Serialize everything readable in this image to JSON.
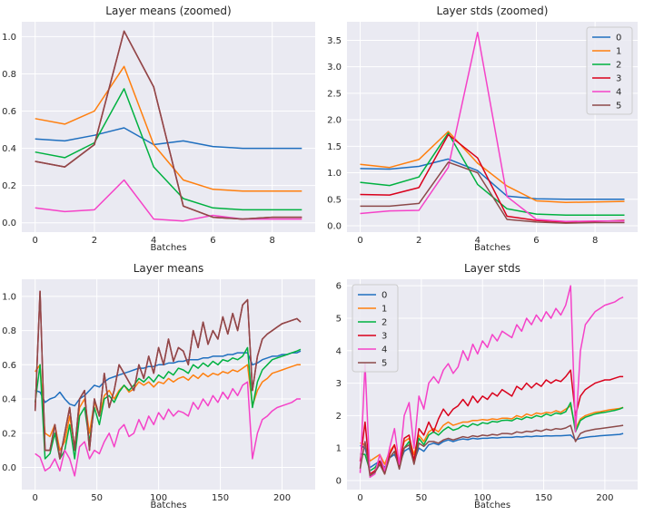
{
  "colors": {
    "background": "#eaeaf2",
    "grid": "#ffffff",
    "series": [
      "#1f6fbf",
      "#ff7f0e",
      "#00b140",
      "#d9001b",
      "#f542c8",
      "#8c4a4a"
    ]
  },
  "chart_data": [
    {
      "type": "line",
      "title": "Layer means (zoomed)",
      "xlabel": "Batches",
      "xlim": [
        -0.45,
        9.45
      ],
      "ylim": [
        -0.05,
        1.08
      ],
      "xticks": [
        "0",
        "2",
        "4",
        "6",
        "8"
      ],
      "yticks": [
        "0.0",
        "0.2",
        "0.4",
        "0.6",
        "0.8",
        "1.0"
      ],
      "legend": false,
      "x": [
        0,
        1,
        2,
        3,
        4,
        5,
        6,
        7,
        8,
        9
      ],
      "series": [
        {
          "name": "0",
          "values": [
            0.45,
            0.44,
            0.47,
            0.51,
            0.42,
            0.44,
            0.41,
            0.4,
            0.4,
            0.4
          ]
        },
        {
          "name": "1",
          "values": [
            0.56,
            0.53,
            0.6,
            0.84,
            0.42,
            0.23,
            0.18,
            0.17,
            0.17,
            0.17
          ]
        },
        {
          "name": "2",
          "values": [
            0.38,
            0.35,
            0.43,
            0.72,
            0.3,
            0.13,
            0.08,
            0.07,
            0.07,
            0.07
          ]
        },
        {
          "name": "3",
          "values": [
            0.33,
            0.3,
            0.42,
            1.03,
            0.73,
            0.09,
            0.03,
            0.02,
            0.03,
            0.03
          ]
        },
        {
          "name": "4",
          "values": [
            0.08,
            0.06,
            0.07,
            0.23,
            0.02,
            0.01,
            0.04,
            0.02,
            0.02,
            0.02
          ]
        },
        {
          "name": "5",
          "values": [
            0.33,
            0.3,
            0.42,
            1.03,
            0.73,
            0.09,
            0.03,
            0.02,
            0.03,
            0.03
          ]
        }
      ]
    },
    {
      "type": "line",
      "title": "Layer stds (zoomed)",
      "xlabel": "Batches",
      "xlim": [
        -0.45,
        9.45
      ],
      "ylim": [
        -0.12,
        3.85
      ],
      "xticks": [
        "0",
        "2",
        "4",
        "6",
        "8"
      ],
      "yticks": [
        "0.0",
        "0.5",
        "1.0",
        "1.5",
        "2.0",
        "2.5",
        "3.0",
        "3.5"
      ],
      "legend": true,
      "legend_position": "top-right",
      "x": [
        0,
        1,
        2,
        3,
        4,
        5,
        6,
        7,
        8,
        9
      ],
      "series": [
        {
          "name": "0",
          "values": [
            1.08,
            1.07,
            1.12,
            1.26,
            1.04,
            0.56,
            0.51,
            0.5,
            0.5,
            0.5
          ]
        },
        {
          "name": "1",
          "values": [
            1.16,
            1.1,
            1.25,
            1.78,
            1.18,
            0.75,
            0.47,
            0.44,
            0.45,
            0.46
          ]
        },
        {
          "name": "2",
          "values": [
            0.82,
            0.76,
            0.92,
            1.75,
            0.78,
            0.32,
            0.22,
            0.2,
            0.2,
            0.2
          ]
        },
        {
          "name": "3",
          "values": [
            0.59,
            0.58,
            0.72,
            1.72,
            1.28,
            0.18,
            0.1,
            0.07,
            0.08,
            0.1
          ]
        },
        {
          "name": "4",
          "values": [
            0.23,
            0.28,
            0.29,
            1.1,
            3.65,
            0.55,
            0.12,
            0.08,
            0.09,
            0.09
          ]
        },
        {
          "name": "5",
          "values": [
            0.37,
            0.37,
            0.42,
            1.2,
            1.0,
            0.12,
            0.07,
            0.05,
            0.06,
            0.06
          ]
        }
      ]
    },
    {
      "type": "line",
      "title": "Layer means",
      "xlabel": "Batches",
      "xlim": [
        -10.8,
        226.8
      ],
      "ylim": [
        -0.13,
        1.1
      ],
      "xticks": [
        "0",
        "50",
        "100",
        "150",
        "200"
      ],
      "yticks": [
        "0.0",
        "0.2",
        "0.4",
        "0.6",
        "0.8",
        "1.0"
      ],
      "legend": false,
      "x_note": "216 batches; values sampled every 4 batches",
      "x": [
        0,
        4,
        8,
        12,
        16,
        20,
        24,
        28,
        32,
        36,
        40,
        44,
        48,
        52,
        56,
        60,
        64,
        68,
        72,
        76,
        80,
        84,
        88,
        92,
        96,
        100,
        104,
        108,
        112,
        116,
        120,
        124,
        128,
        132,
        136,
        140,
        144,
        148,
        152,
        156,
        160,
        164,
        168,
        172,
        176,
        180,
        184,
        188,
        192,
        196,
        200,
        204,
        208,
        212,
        215
      ],
      "series": [
        {
          "name": "0",
          "values": [
            0.45,
            0.44,
            0.38,
            0.4,
            0.41,
            0.44,
            0.4,
            0.37,
            0.36,
            0.4,
            0.42,
            0.45,
            0.48,
            0.47,
            0.5,
            0.52,
            0.53,
            0.54,
            0.55,
            0.56,
            0.57,
            0.58,
            0.58,
            0.59,
            0.59,
            0.6,
            0.6,
            0.61,
            0.61,
            0.62,
            0.62,
            0.63,
            0.63,
            0.63,
            0.64,
            0.64,
            0.65,
            0.65,
            0.65,
            0.66,
            0.66,
            0.67,
            0.67,
            0.67,
            0.6,
            0.61,
            0.63,
            0.64,
            0.65,
            0.65,
            0.66,
            0.66,
            0.67,
            0.67,
            0.68
          ]
        },
        {
          "name": "1",
          "values": [
            0.56,
            0.6,
            0.2,
            0.18,
            0.25,
            0.1,
            0.15,
            0.3,
            0.12,
            0.35,
            0.4,
            0.2,
            0.38,
            0.3,
            0.42,
            0.45,
            0.4,
            0.45,
            0.48,
            0.44,
            0.46,
            0.5,
            0.48,
            0.5,
            0.47,
            0.5,
            0.49,
            0.52,
            0.5,
            0.52,
            0.53,
            0.51,
            0.54,
            0.52,
            0.55,
            0.53,
            0.55,
            0.54,
            0.56,
            0.55,
            0.57,
            0.56,
            0.58,
            0.6,
            0.36,
            0.45,
            0.5,
            0.52,
            0.55,
            0.56,
            0.57,
            0.58,
            0.59,
            0.6,
            0.6
          ]
        },
        {
          "name": "2",
          "values": [
            0.38,
            0.6,
            0.05,
            0.08,
            0.2,
            0.05,
            0.1,
            0.25,
            0.05,
            0.3,
            0.35,
            0.15,
            0.35,
            0.25,
            0.4,
            0.42,
            0.38,
            0.44,
            0.48,
            0.45,
            0.48,
            0.52,
            0.5,
            0.53,
            0.5,
            0.54,
            0.52,
            0.56,
            0.54,
            0.58,
            0.57,
            0.55,
            0.6,
            0.58,
            0.61,
            0.59,
            0.62,
            0.6,
            0.63,
            0.62,
            0.64,
            0.63,
            0.65,
            0.7,
            0.35,
            0.5,
            0.57,
            0.6,
            0.63,
            0.64,
            0.65,
            0.66,
            0.67,
            0.68,
            0.69
          ]
        },
        {
          "name": "3",
          "values": [
            0.33,
            1.03,
            0.1,
            0.1,
            0.25,
            0.05,
            0.2,
            0.35,
            0.1,
            0.4,
            0.45,
            0.1,
            0.4,
            0.3,
            0.55,
            0.35,
            0.45,
            0.6,
            0.55,
            0.5,
            0.45,
            0.6,
            0.52,
            0.65,
            0.55,
            0.7,
            0.6,
            0.75,
            0.62,
            0.7,
            0.68,
            0.6,
            0.8,
            0.7,
            0.85,
            0.72,
            0.8,
            0.75,
            0.88,
            0.78,
            0.9,
            0.8,
            0.95,
            0.98,
            0.45,
            0.65,
            0.75,
            0.78,
            0.8,
            0.82,
            0.84,
            0.85,
            0.86,
            0.87,
            0.85
          ]
        },
        {
          "name": "4",
          "values": [
            0.08,
            0.06,
            -0.02,
            0.0,
            0.05,
            -0.02,
            0.1,
            0.05,
            -0.05,
            0.12,
            0.15,
            0.05,
            0.1,
            0.08,
            0.15,
            0.2,
            0.12,
            0.22,
            0.25,
            0.18,
            0.2,
            0.28,
            0.22,
            0.3,
            0.25,
            0.32,
            0.28,
            0.34,
            0.3,
            0.33,
            0.32,
            0.3,
            0.38,
            0.34,
            0.4,
            0.36,
            0.42,
            0.38,
            0.44,
            0.4,
            0.46,
            0.42,
            0.48,
            0.5,
            0.05,
            0.2,
            0.28,
            0.3,
            0.33,
            0.35,
            0.36,
            0.37,
            0.38,
            0.4,
            0.4
          ]
        },
        {
          "name": "5",
          "values": [
            0.33,
            1.03,
            0.1,
            0.1,
            0.25,
            0.05,
            0.2,
            0.35,
            0.1,
            0.4,
            0.45,
            0.1,
            0.4,
            0.3,
            0.55,
            0.35,
            0.45,
            0.6,
            0.55,
            0.5,
            0.45,
            0.6,
            0.52,
            0.65,
            0.55,
            0.7,
            0.6,
            0.75,
            0.62,
            0.7,
            0.68,
            0.6,
            0.8,
            0.7,
            0.85,
            0.72,
            0.8,
            0.75,
            0.88,
            0.78,
            0.9,
            0.8,
            0.95,
            0.98,
            0.45,
            0.65,
            0.75,
            0.78,
            0.8,
            0.82,
            0.84,
            0.85,
            0.86,
            0.87,
            0.85
          ]
        }
      ]
    },
    {
      "type": "line",
      "title": "Layer stds",
      "xlabel": "Batches",
      "xlim": [
        -10.8,
        226.8
      ],
      "ylim": [
        -0.28,
        6.2
      ],
      "xticks": [
        "0",
        "50",
        "100",
        "150",
        "200"
      ],
      "yticks": [
        "0",
        "1",
        "2",
        "3",
        "4",
        "5",
        "6"
      ],
      "legend": true,
      "legend_position": "top-left",
      "x_note": "216 batches; values sampled every 4 batches",
      "x": [
        0,
        4,
        8,
        12,
        16,
        20,
        24,
        28,
        32,
        36,
        40,
        44,
        48,
        52,
        56,
        60,
        64,
        68,
        72,
        76,
        80,
        84,
        88,
        92,
        96,
        100,
        104,
        108,
        112,
        116,
        120,
        124,
        128,
        132,
        136,
        140,
        144,
        148,
        152,
        156,
        160,
        164,
        168,
        172,
        176,
        180,
        184,
        188,
        192,
        196,
        200,
        204,
        208,
        212,
        215
      ],
      "series": [
        {
          "name": "0",
          "values": [
            1.08,
            1.0,
            0.4,
            0.5,
            0.6,
            0.4,
            0.7,
            0.8,
            0.5,
            0.9,
            1.0,
            0.6,
            1.0,
            0.9,
            1.1,
            1.15,
            1.1,
            1.2,
            1.25,
            1.2,
            1.25,
            1.28,
            1.26,
            1.3,
            1.28,
            1.3,
            1.3,
            1.32,
            1.31,
            1.33,
            1.33,
            1.33,
            1.35,
            1.34,
            1.36,
            1.35,
            1.37,
            1.36,
            1.38,
            1.37,
            1.38,
            1.38,
            1.39,
            1.4,
            1.25,
            1.3,
            1.33,
            1.35,
            1.36,
            1.38,
            1.39,
            1.4,
            1.41,
            1.42,
            1.45
          ]
        },
        {
          "name": "1",
          "values": [
            1.16,
            1.1,
            0.6,
            0.7,
            0.8,
            0.5,
            0.9,
            1.1,
            0.6,
            1.2,
            1.3,
            0.8,
            1.4,
            1.2,
            1.5,
            1.6,
            1.5,
            1.7,
            1.8,
            1.7,
            1.75,
            1.8,
            1.8,
            1.85,
            1.85,
            1.88,
            1.86,
            1.9,
            1.88,
            1.92,
            1.92,
            1.9,
            2.0,
            1.95,
            2.05,
            2.0,
            2.08,
            2.05,
            2.1,
            2.08,
            2.15,
            2.1,
            2.2,
            2.3,
            1.6,
            1.9,
            2.0,
            2.05,
            2.1,
            2.12,
            2.15,
            2.18,
            2.2,
            2.22,
            2.25
          ]
        },
        {
          "name": "2",
          "values": [
            0.82,
            0.8,
            0.3,
            0.4,
            0.6,
            0.3,
            0.7,
            0.9,
            0.4,
            1.0,
            1.2,
            0.6,
            1.3,
            1.1,
            1.4,
            1.5,
            1.4,
            1.55,
            1.65,
            1.55,
            1.6,
            1.7,
            1.65,
            1.75,
            1.7,
            1.78,
            1.75,
            1.82,
            1.8,
            1.85,
            1.86,
            1.84,
            1.92,
            1.88,
            1.96,
            1.92,
            2.0,
            1.96,
            2.05,
            2.0,
            2.08,
            2.05,
            2.12,
            2.4,
            1.5,
            1.85,
            1.95,
            2.0,
            2.05,
            2.08,
            2.1,
            2.13,
            2.16,
            2.2,
            2.25
          ]
        },
        {
          "name": "3",
          "values": [
            0.59,
            1.8,
            0.2,
            0.3,
            0.6,
            0.2,
            0.8,
            1.1,
            0.4,
            1.3,
            1.4,
            0.6,
            1.6,
            1.4,
            1.8,
            1.5,
            1.9,
            2.2,
            2.0,
            2.2,
            2.3,
            2.5,
            2.3,
            2.6,
            2.4,
            2.6,
            2.5,
            2.7,
            2.6,
            2.8,
            2.7,
            2.6,
            2.9,
            2.8,
            3.0,
            2.85,
            3.0,
            2.9,
            3.1,
            3.0,
            3.1,
            3.05,
            3.2,
            3.4,
            2.0,
            2.6,
            2.8,
            2.9,
            3.0,
            3.05,
            3.1,
            3.1,
            3.15,
            3.2,
            3.2
          ]
        },
        {
          "name": "4",
          "values": [
            0.23,
            3.6,
            0.1,
            0.2,
            0.8,
            0.3,
            1.0,
            1.6,
            0.5,
            2.0,
            2.4,
            1.0,
            2.6,
            2.2,
            3.0,
            3.2,
            3.0,
            3.4,
            3.6,
            3.3,
            3.5,
            4.0,
            3.7,
            4.2,
            3.9,
            4.3,
            4.1,
            4.5,
            4.3,
            4.6,
            4.5,
            4.4,
            4.8,
            4.6,
            5.0,
            4.8,
            5.1,
            4.9,
            5.2,
            5.0,
            5.3,
            5.1,
            5.4,
            6.0,
            1.5,
            4.0,
            4.8,
            5.0,
            5.2,
            5.3,
            5.4,
            5.45,
            5.5,
            5.6,
            5.65
          ]
        },
        {
          "name": "5",
          "values": [
            0.37,
            1.2,
            0.15,
            0.25,
            0.5,
            0.2,
            0.7,
            0.9,
            0.35,
            1.0,
            1.1,
            0.5,
            1.15,
            1.05,
            1.2,
            1.2,
            1.15,
            1.25,
            1.3,
            1.25,
            1.3,
            1.35,
            1.32,
            1.38,
            1.35,
            1.4,
            1.38,
            1.42,
            1.4,
            1.45,
            1.45,
            1.43,
            1.5,
            1.47,
            1.52,
            1.5,
            1.55,
            1.52,
            1.58,
            1.55,
            1.6,
            1.58,
            1.62,
            1.7,
            1.2,
            1.45,
            1.52,
            1.55,
            1.58,
            1.6,
            1.62,
            1.64,
            1.66,
            1.68,
            1.7
          ]
        }
      ]
    }
  ]
}
